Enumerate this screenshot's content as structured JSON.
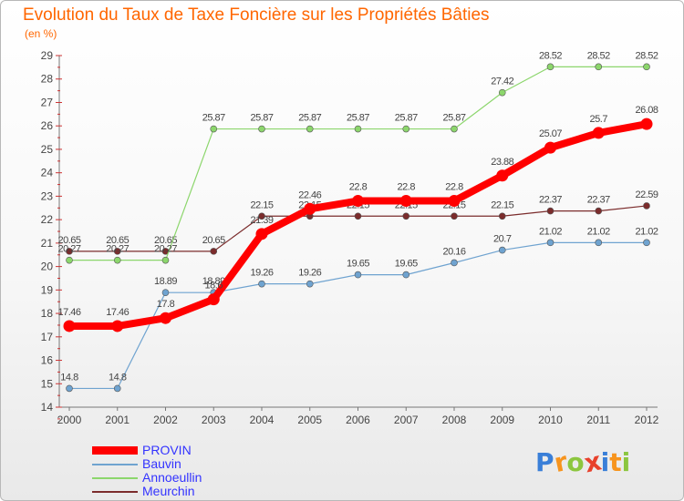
{
  "title": "Evolution du Taux de Taxe Foncière sur les Propriétés Bâties",
  "subtitle": "(en %)",
  "logo": {
    "letters": [
      "P",
      "r",
      "o",
      "x",
      "i",
      "t",
      "i"
    ],
    "colors": [
      "#3a7fd8",
      "#f7941d",
      "#8cc63f",
      "#e8412c",
      "#3a7fd8",
      "#f7941d",
      "#8cc63f"
    ]
  },
  "chart_data": {
    "type": "line",
    "x": [
      "2000",
      "2001",
      "2002",
      "2003",
      "2004",
      "2005",
      "2006",
      "2007",
      "2008",
      "2009",
      "2010",
      "2011",
      "2012"
    ],
    "ylim": [
      14,
      29
    ],
    "yticks": [
      "14",
      "15",
      "16",
      "17",
      "18",
      "19",
      "20",
      "21",
      "22",
      "23",
      "24",
      "25",
      "26",
      "27",
      "28",
      "29"
    ],
    "grid": false,
    "legend": "bottom-left",
    "series": [
      {
        "name": "Meurchin",
        "color": "#7b2c2c",
        "values": [
          20.65,
          20.65,
          20.65,
          20.65,
          22.15,
          22.15,
          22.15,
          22.15,
          22.15,
          22.15,
          22.37,
          22.37,
          22.59
        ],
        "labels": [
          "20.65",
          "20.65",
          "20.65",
          "20.65",
          "22.15",
          "22.15",
          "22.15",
          "22.15",
          "22.15",
          "22.15",
          "22.37",
          "22.37",
          "22.59"
        ]
      },
      {
        "name": "Annoeullin",
        "color": "#8cd66c",
        "values": [
          20.27,
          20.27,
          20.27,
          25.87,
          25.87,
          25.87,
          25.87,
          25.87,
          25.87,
          27.42,
          28.52,
          28.52,
          28.52
        ],
        "labels": [
          "20.27",
          "20.27",
          "20.27",
          "25.87",
          "25.87",
          "25.87",
          "25.87",
          "25.87",
          "25.87",
          "27.42",
          "28.52",
          "28.52",
          "28.52"
        ]
      },
      {
        "name": "Bauvin",
        "color": "#6fa3d0",
        "values": [
          14.8,
          14.8,
          18.89,
          18.89,
          19.26,
          19.26,
          19.65,
          19.65,
          20.16,
          20.7,
          21.02,
          21.02,
          21.02
        ],
        "labels": [
          "14.8",
          "14.8",
          "18.89",
          "18.89",
          "19.26",
          "19.26",
          "19.65",
          "19.65",
          "20.16",
          "20.7",
          "21.02",
          "21.02",
          "21.02"
        ]
      },
      {
        "name": "PROVIN",
        "color": "#ff0000",
        "values": [
          17.46,
          17.46,
          17.8,
          18.6,
          21.39,
          22.46,
          22.8,
          22.8,
          22.8,
          23.88,
          25.07,
          25.7,
          26.08
        ],
        "labels": [
          "17.46",
          "17.46",
          "17.8",
          "18.6",
          "21.39",
          "22.46",
          "22.8",
          "22.8",
          "22.8",
          "23.88",
          "25.07",
          "25.7",
          "26.08"
        ]
      }
    ]
  }
}
